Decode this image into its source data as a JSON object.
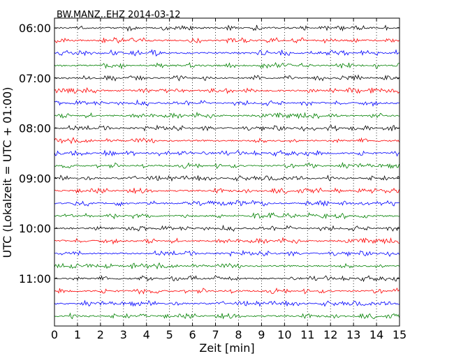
{
  "chart_data": {
    "type": "line",
    "title": "BW.MANZ..EHZ 2014-03-12",
    "xlabel": "Zeit  [min]",
    "ylabel": "UTC (Lokalzeit = UTC + 01:00)",
    "xlim": [
      0,
      15
    ],
    "x_ticks": [
      "0",
      "1",
      "2",
      "3",
      "4",
      "5",
      "6",
      "7",
      "8",
      "9",
      "10",
      "11",
      "12",
      "13",
      "14",
      "15"
    ],
    "y_ticks": [
      "06:00",
      "07:00",
      "08:00",
      "09:00",
      "10:00",
      "11:00"
    ],
    "grid": "dotted vertical",
    "trace_colors": [
      "#000000",
      "#ff0000",
      "#0000ff",
      "#008000"
    ],
    "trace_start_times": [
      "06:00",
      "06:15",
      "06:30",
      "06:45",
      "07:00",
      "07:15",
      "07:30",
      "07:45",
      "08:00",
      "08:15",
      "08:30",
      "08:45",
      "09:00",
      "09:15",
      "09:30",
      "09:45",
      "10:00",
      "10:15",
      "10:30",
      "10:45",
      "11:00",
      "11:15",
      "11:30",
      "11:45"
    ]
  }
}
